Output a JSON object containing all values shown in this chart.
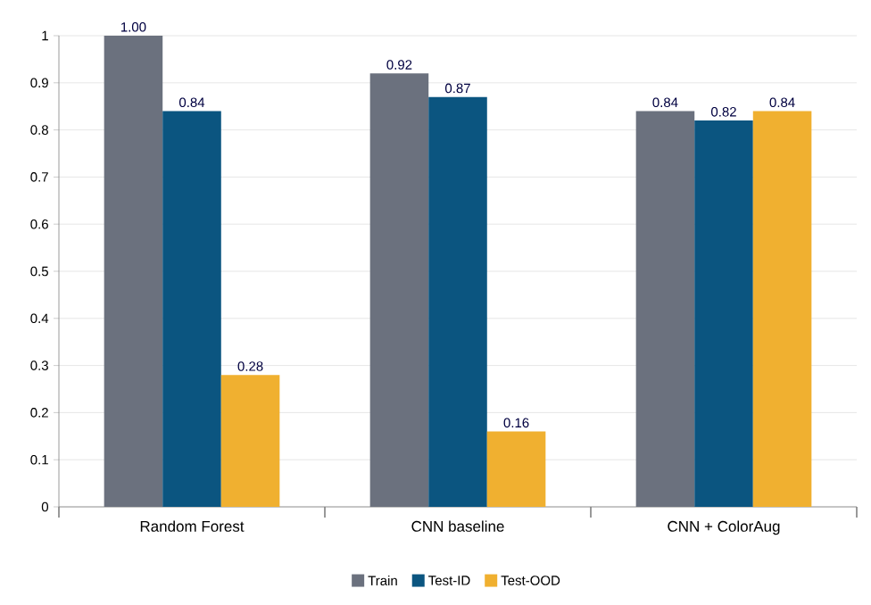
{
  "chart_data": {
    "type": "bar",
    "categories": [
      "Random Forest",
      "CNN baseline",
      "CNN + ColorAug"
    ],
    "series": [
      {
        "name": "Train",
        "color": "#6b717e",
        "values": [
          1.0,
          0.92,
          0.84
        ],
        "value_labels": [
          "1.00",
          "0.92",
          "0.84"
        ]
      },
      {
        "name": "Test-ID",
        "color": "#0b5580",
        "values": [
          0.84,
          0.87,
          0.82
        ],
        "value_labels": [
          "0.84",
          "0.87",
          "0.82"
        ]
      },
      {
        "name": "Test-OOD",
        "color": "#f0b030",
        "values": [
          0.28,
          0.16,
          0.84
        ],
        "value_labels": [
          "0.28",
          "0.16",
          "0.84"
        ]
      }
    ],
    "ylim": [
      0,
      1
    ],
    "yticks": [
      0,
      0.1,
      0.2,
      0.3,
      0.4,
      0.5,
      0.6,
      0.7,
      0.8,
      0.9,
      1
    ],
    "grid": "y",
    "legend": "bottom"
  }
}
